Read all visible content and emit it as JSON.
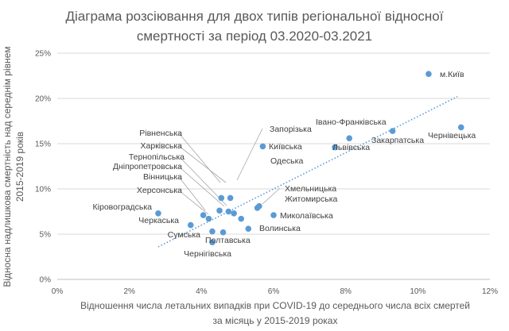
{
  "chart_data": {
    "type": "scatter",
    "title_lines": [
      "Діаграма розсіювання для двох типів регіональної відносної",
      "смертності за період 03.2020-03.2021"
    ],
    "xlabel_lines": [
      "Відношення числа летальних випадків при COVID-19 до середнього числа всіх смертей",
      "за місяць у 2015-2019 роках"
    ],
    "ylabel_lines": [
      "Відносна надлишкова смертність над середнім рівнем",
      "2015-2019 років"
    ],
    "xlim": [
      0,
      12
    ],
    "ylim": [
      0,
      25
    ],
    "x_ticks": [
      0,
      2,
      4,
      6,
      8,
      10,
      12
    ],
    "y_ticks": [
      0,
      5,
      10,
      15,
      20,
      25
    ],
    "x_tick_labels": [
      "0%",
      "2%",
      "4%",
      "6%",
      "8%",
      "10%",
      "12%"
    ],
    "y_tick_labels": [
      "0%",
      "5%",
      "10%",
      "15%",
      "20%",
      "25%"
    ],
    "grid": true,
    "point_color": "#5b9bd5",
    "trendline": {
      "type": "linear",
      "x_start": 2.8,
      "y_start": 3.6,
      "x_end": 11.1,
      "y_end": 20.2
    },
    "points": [
      {
        "name": "м.Київ",
        "x": 10.3,
        "y": 22.7
      },
      {
        "name": "Чернівецька",
        "x": 11.2,
        "y": 16.8
      },
      {
        "name": "Івано-Франківська",
        "x": 9.3,
        "y": 16.4
      },
      {
        "name": "Закарпатська",
        "x": 8.1,
        "y": 15.6
      },
      {
        "name": "Львівська",
        "x": 7.7,
        "y": 14.6
      },
      {
        "name": "Київська",
        "x": 5.7,
        "y": 14.7
      },
      {
        "name": "Запорізька",
        "x": 5.1,
        "y": 6.7
      },
      {
        "name": "Одеська",
        "x": 4.9,
        "y": 7.3
      },
      {
        "name": "Хмельницька",
        "x": 5.6,
        "y": 8.1
      },
      {
        "name": "Житомирська",
        "x": 5.55,
        "y": 7.9
      },
      {
        "name": "Миколаївська",
        "x": 6.0,
        "y": 7.1
      },
      {
        "name": "Волинська",
        "x": 5.3,
        "y": 5.6
      },
      {
        "name": "Полтавська",
        "x": 4.6,
        "y": 5.2
      },
      {
        "name": "Рівненська",
        "x": 4.55,
        "y": 9.0
      },
      {
        "name": "Харківська",
        "x": 4.8,
        "y": 9.0
      },
      {
        "name": "Тернопільська",
        "x": 4.75,
        "y": 7.5
      },
      {
        "name": "Дніпропетровська",
        "x": 4.5,
        "y": 7.6
      },
      {
        "name": "Вінницька",
        "x": 4.2,
        "y": 6.7
      },
      {
        "name": "Херсонська",
        "x": 4.05,
        "y": 7.1
      },
      {
        "name": "Кіровоградська",
        "x": 2.8,
        "y": 7.3
      },
      {
        "name": "Черкаська",
        "x": 3.7,
        "y": 6.0
      },
      {
        "name": "Сумська",
        "x": 4.3,
        "y": 5.3
      },
      {
        "name": "Чернігівська",
        "x": 4.3,
        "y": 4.1
      }
    ]
  }
}
